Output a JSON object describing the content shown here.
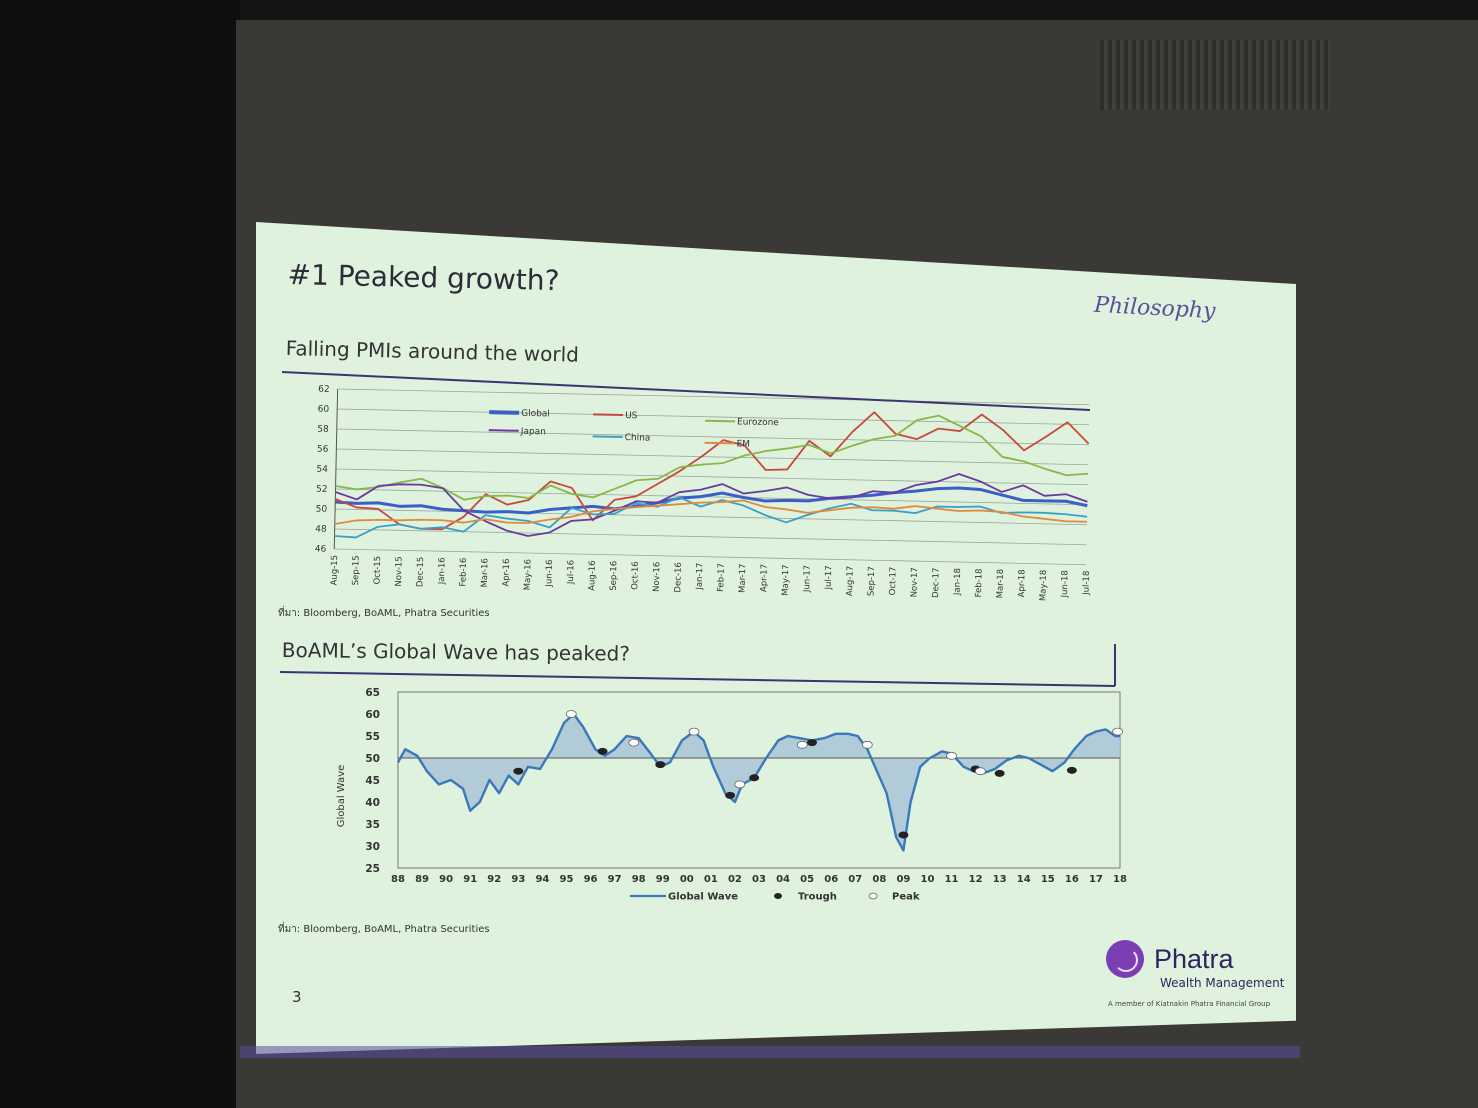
{
  "slide": {
    "title": "#1 Peaked growth?",
    "logo_script": "Philosophy",
    "page_number": "3",
    "brand": {
      "name": "Phatra",
      "subtitle": "Wealth Management",
      "tagline": "A member of Kiatnakin Phatra Financial Group"
    }
  },
  "colors": {
    "slide_bg": "#def2dd",
    "accent": "#3b3470",
    "global": "#3a5fc8",
    "us": "#c9473d",
    "eurozone": "#86b84a",
    "japan": "#6a3aa0",
    "china": "#3aa0c6",
    "em": "#e08a3c",
    "wave": "#3a78b8",
    "wave_fill": "#a9c4d8"
  },
  "chart_data": [
    {
      "type": "line",
      "title": "Falling PMIs around the world",
      "source": "ที่มา: Bloomberg, BoAML, Phatra Securities",
      "categories": [
        "Aug-15",
        "Sep-15",
        "Oct-15",
        "Nov-15",
        "Dec-15",
        "Jan-16",
        "Feb-16",
        "Mar-16",
        "Apr-16",
        "May-16",
        "Jun-16",
        "Jul-16",
        "Aug-16",
        "Sep-16",
        "Oct-16",
        "Nov-16",
        "Dec-16",
        "Jan-17",
        "Feb-17",
        "Mar-17",
        "Apr-17",
        "May-17",
        "Jun-17",
        "Jul-17",
        "Aug-17",
        "Sep-17",
        "Oct-17",
        "Nov-17",
        "Dec-17",
        "Jan-18",
        "Feb-18",
        "Mar-18",
        "Apr-18",
        "May-18",
        "Jun-18",
        "Jul-18"
      ],
      "ylim": [
        46,
        62
      ],
      "yticks": [
        46,
        48,
        50,
        52,
        54,
        56,
        58,
        60,
        62
      ],
      "grid": true,
      "legend_position": "top-left",
      "series": [
        {
          "name": "Global",
          "color_key": "global",
          "values": [
            50.7,
            50.6,
            50.7,
            50.4,
            50.5,
            50.2,
            50.1,
            50.0,
            50.1,
            50.0,
            50.4,
            50.6,
            50.8,
            50.6,
            50.9,
            51.3,
            51.8,
            52.0,
            52.4,
            52.0,
            51.7,
            51.8,
            51.8,
            52.1,
            52.3,
            52.5,
            52.8,
            53.0,
            53.3,
            53.4,
            53.3,
            52.8,
            52.3,
            52.3,
            52.3,
            51.9
          ]
        },
        {
          "name": "US",
          "color_key": "us",
          "values": [
            51.0,
            50.2,
            50.1,
            48.6,
            48.2,
            48.2,
            49.5,
            51.8,
            50.8,
            51.3,
            53.2,
            52.6,
            49.4,
            51.5,
            51.9,
            53.2,
            54.5,
            56.0,
            57.7,
            57.2,
            54.8,
            54.9,
            57.8,
            56.3,
            58.8,
            60.8,
            58.7,
            58.2,
            59.3,
            59.1,
            60.8,
            59.3,
            57.3,
            58.7,
            60.2,
            58.1
          ]
        },
        {
          "name": "Eurozone",
          "color_key": "eurozone",
          "values": [
            52.3,
            52.0,
            52.3,
            52.8,
            53.2,
            52.3,
            51.2,
            51.6,
            51.7,
            51.5,
            52.8,
            52.0,
            51.7,
            52.6,
            53.5,
            53.7,
            54.9,
            55.2,
            55.4,
            56.2,
            56.7,
            57.0,
            57.4,
            56.6,
            57.4,
            58.1,
            58.5,
            60.1,
            60.6,
            59.6,
            58.6,
            56.6,
            56.2,
            55.5,
            54.9,
            55.1
          ]
        },
        {
          "name": "Japan",
          "color_key": "japan",
          "values": [
            51.7,
            51.0,
            52.4,
            52.6,
            52.6,
            52.3,
            50.1,
            49.1,
            48.2,
            47.7,
            48.1,
            49.3,
            49.5,
            50.4,
            51.4,
            51.3,
            52.4,
            52.7,
            53.3,
            52.4,
            52.7,
            53.1,
            52.4,
            52.1,
            52.2,
            52.9,
            52.8,
            53.6,
            54.0,
            54.8,
            54.1,
            53.1,
            53.8,
            52.8,
            53.0,
            52.3
          ]
        },
        {
          "name": "China",
          "color_key": "china",
          "values": [
            47.3,
            47.2,
            48.3,
            48.6,
            48.2,
            48.4,
            48.0,
            49.7,
            49.4,
            49.2,
            48.6,
            50.6,
            50.0,
            50.1,
            51.2,
            50.9,
            51.9,
            51.0,
            51.7,
            51.2,
            50.3,
            49.6,
            50.4,
            51.1,
            51.6,
            51.0,
            51.0,
            50.8,
            51.5,
            51.5,
            51.6,
            51.0,
            51.1,
            51.1,
            51.0,
            50.8
          ]
        },
        {
          "name": "EM",
          "color_key": "em",
          "values": [
            48.5,
            48.9,
            49.0,
            49.0,
            49.1,
            49.1,
            48.9,
            49.3,
            49.0,
            49.0,
            49.4,
            49.7,
            50.3,
            50.6,
            50.8,
            51.0,
            51.2,
            51.4,
            51.5,
            51.7,
            51.1,
            50.9,
            50.6,
            50.9,
            51.2,
            51.3,
            51.2,
            51.5,
            51.3,
            51.1,
            51.2,
            51.1,
            50.7,
            50.5,
            50.3,
            50.3
          ]
        }
      ]
    },
    {
      "type": "area",
      "title": "BoAML’s Global Wave has peaked?",
      "source": "ที่มา: Bloomberg, BoAML, Phatra Securities",
      "ylabel": "Global Wave",
      "ylim": [
        25,
        65
      ],
      "yticks": [
        25,
        30,
        35,
        40,
        45,
        50,
        55,
        60,
        65
      ],
      "baseline": 50,
      "x_labels": [
        "88",
        "89",
        "90",
        "91",
        "92",
        "93",
        "94",
        "95",
        "96",
        "97",
        "98",
        "99",
        "00",
        "01",
        "02",
        "03",
        "04",
        "05",
        "06",
        "07",
        "08",
        "09",
        "10",
        "11",
        "12",
        "13",
        "14",
        "15",
        "16",
        "17",
        "18"
      ],
      "x": [
        1988.0,
        1988.3,
        1988.8,
        1989.2,
        1989.7,
        1990.2,
        1990.7,
        1991.0,
        1991.4,
        1991.8,
        1992.2,
        1992.6,
        1993.0,
        1993.4,
        1993.9,
        1994.4,
        1994.9,
        1995.3,
        1995.7,
        1996.2,
        1996.6,
        1997.0,
        1997.5,
        1998.0,
        1998.5,
        1998.9,
        1999.3,
        1999.8,
        2000.3,
        2000.7,
        2001.1,
        2001.6,
        2002.0,
        2002.3,
        2002.8,
        2003.3,
        2003.8,
        2004.2,
        2004.7,
        2005.2,
        2005.7,
        2006.2,
        2006.7,
        2007.1,
        2007.5,
        2007.9,
        2008.3,
        2008.7,
        2009.0,
        2009.3,
        2009.7,
        2010.1,
        2010.6,
        2011.0,
        2011.5,
        2011.9,
        2012.3,
        2012.8,
        2013.3,
        2013.8,
        2014.2,
        2014.7,
        2015.2,
        2015.7,
        2016.1,
        2016.6,
        2017.0,
        2017.4,
        2017.8,
        2018.0
      ],
      "wave_values": [
        49.0,
        52.0,
        50.5,
        47.0,
        44.0,
        45.0,
        43.0,
        38.0,
        40.0,
        45.0,
        42.0,
        46.0,
        44.0,
        48.0,
        47.5,
        52.0,
        58.0,
        60.0,
        57.0,
        52.0,
        50.5,
        52.0,
        55.0,
        54.5,
        51.0,
        48.0,
        49.0,
        54.0,
        56.0,
        54.0,
        48.0,
        42.0,
        40.0,
        44.0,
        45.5,
        50.0,
        54.0,
        55.0,
        54.5,
        54.0,
        54.5,
        55.5,
        55.5,
        55.0,
        52.0,
        47.0,
        42.0,
        32.0,
        29.0,
        40.0,
        48.0,
        50.0,
        51.5,
        51.0,
        48.0,
        47.0,
        46.5,
        47.5,
        49.5,
        50.5,
        50.0,
        48.5,
        47.0,
        49.0,
        52.0,
        55.0,
        56.0,
        56.5,
        55.0,
        55.0
      ],
      "troughs": [
        [
          1993.0,
          47.0
        ],
        [
          1996.5,
          51.5
        ],
        [
          1998.9,
          48.5
        ],
        [
          2001.8,
          41.5
        ],
        [
          2002.8,
          45.5
        ],
        [
          2005.2,
          53.5
        ],
        [
          2009.0,
          32.5
        ],
        [
          2012.0,
          47.5
        ],
        [
          2013.0,
          46.5
        ],
        [
          2016.0,
          47.2
        ]
      ],
      "peaks": [
        [
          1995.2,
          60.0
        ],
        [
          1997.8,
          53.5
        ],
        [
          2000.3,
          56.0
        ],
        [
          2002.2,
          44.0
        ],
        [
          2004.8,
          53.0
        ],
        [
          2007.5,
          53.0
        ],
        [
          2011.0,
          50.5
        ],
        [
          2012.2,
          47.0
        ],
        [
          2017.9,
          56.0
        ]
      ],
      "legend": {
        "line": "Global Wave",
        "trough": "Trough",
        "peak": "Peak"
      },
      "legend_position": "bottom"
    }
  ]
}
